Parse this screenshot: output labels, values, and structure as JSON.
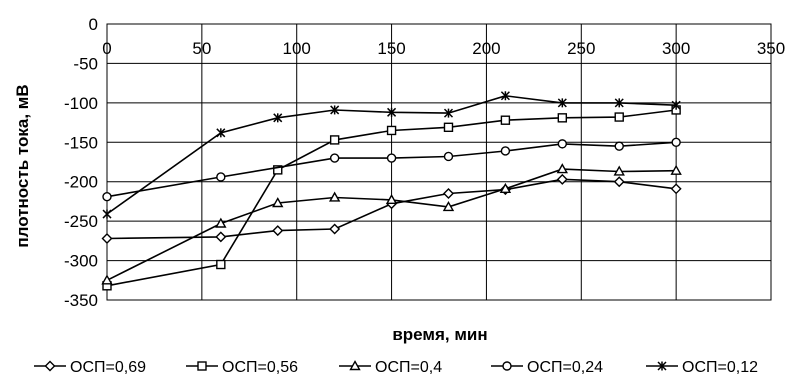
{
  "chart_data": {
    "type": "line",
    "title": "",
    "xlabel": "время, мин",
    "ylabel": "плотность тока, мВ",
    "xlim": [
      0,
      350
    ],
    "ylim": [
      -350,
      0
    ],
    "x_ticks": [
      0,
      50,
      100,
      150,
      200,
      250,
      300,
      350
    ],
    "y_ticks": [
      0,
      -50,
      -100,
      -150,
      -200,
      -250,
      -300,
      -350
    ],
    "x_tick_labels": [
      "0",
      "50",
      "100",
      "150",
      "200",
      "250",
      "300",
      "350"
    ],
    "y_tick_labels": [
      "0",
      "-50",
      "-100",
      "-150",
      "-200",
      "-250",
      "-300",
      "-350"
    ],
    "x_axis_position": "top",
    "grid": true,
    "legend_position": "bottom",
    "series": [
      {
        "name": "ОСП=0,69",
        "marker": "diamond",
        "x": [
          0,
          60,
          90,
          120,
          150,
          180,
          210,
          240,
          270,
          300
        ],
        "y": [
          -272,
          -270,
          -262,
          -260,
          -228,
          -215,
          -210,
          -197,
          -200,
          -209
        ]
      },
      {
        "name": "ОСП=0,56",
        "marker": "square",
        "x": [
          0,
          60,
          90,
          120,
          150,
          180,
          210,
          240,
          270,
          300
        ],
        "y": [
          -332,
          -305,
          -185,
          -147,
          -135,
          -131,
          -122,
          -119,
          -118,
          -109
        ]
      },
      {
        "name": "ОСП=0,4",
        "marker": "triangle",
        "x": [
          0,
          60,
          90,
          120,
          150,
          180,
          210,
          240,
          270,
          300
        ],
        "y": [
          -325,
          -253,
          -227,
          -220,
          -223,
          -232,
          -209,
          -184,
          -187,
          -186
        ]
      },
      {
        "name": "ОСП=0,24",
        "marker": "circle",
        "x": [
          0,
          60,
          120,
          150,
          180,
          210,
          240,
          270,
          300
        ],
        "y": [
          -219,
          -194,
          -170,
          -170,
          -168,
          -161,
          -152,
          -155,
          -150
        ]
      },
      {
        "name": "ОСП=0,12",
        "marker": "star",
        "x": [
          0,
          60,
          90,
          120,
          150,
          180,
          210,
          240,
          270,
          300
        ],
        "y": [
          -241,
          -138,
          -119,
          -109,
          -112,
          -113,
          -91,
          -100,
          -100,
          -103
        ]
      }
    ]
  }
}
